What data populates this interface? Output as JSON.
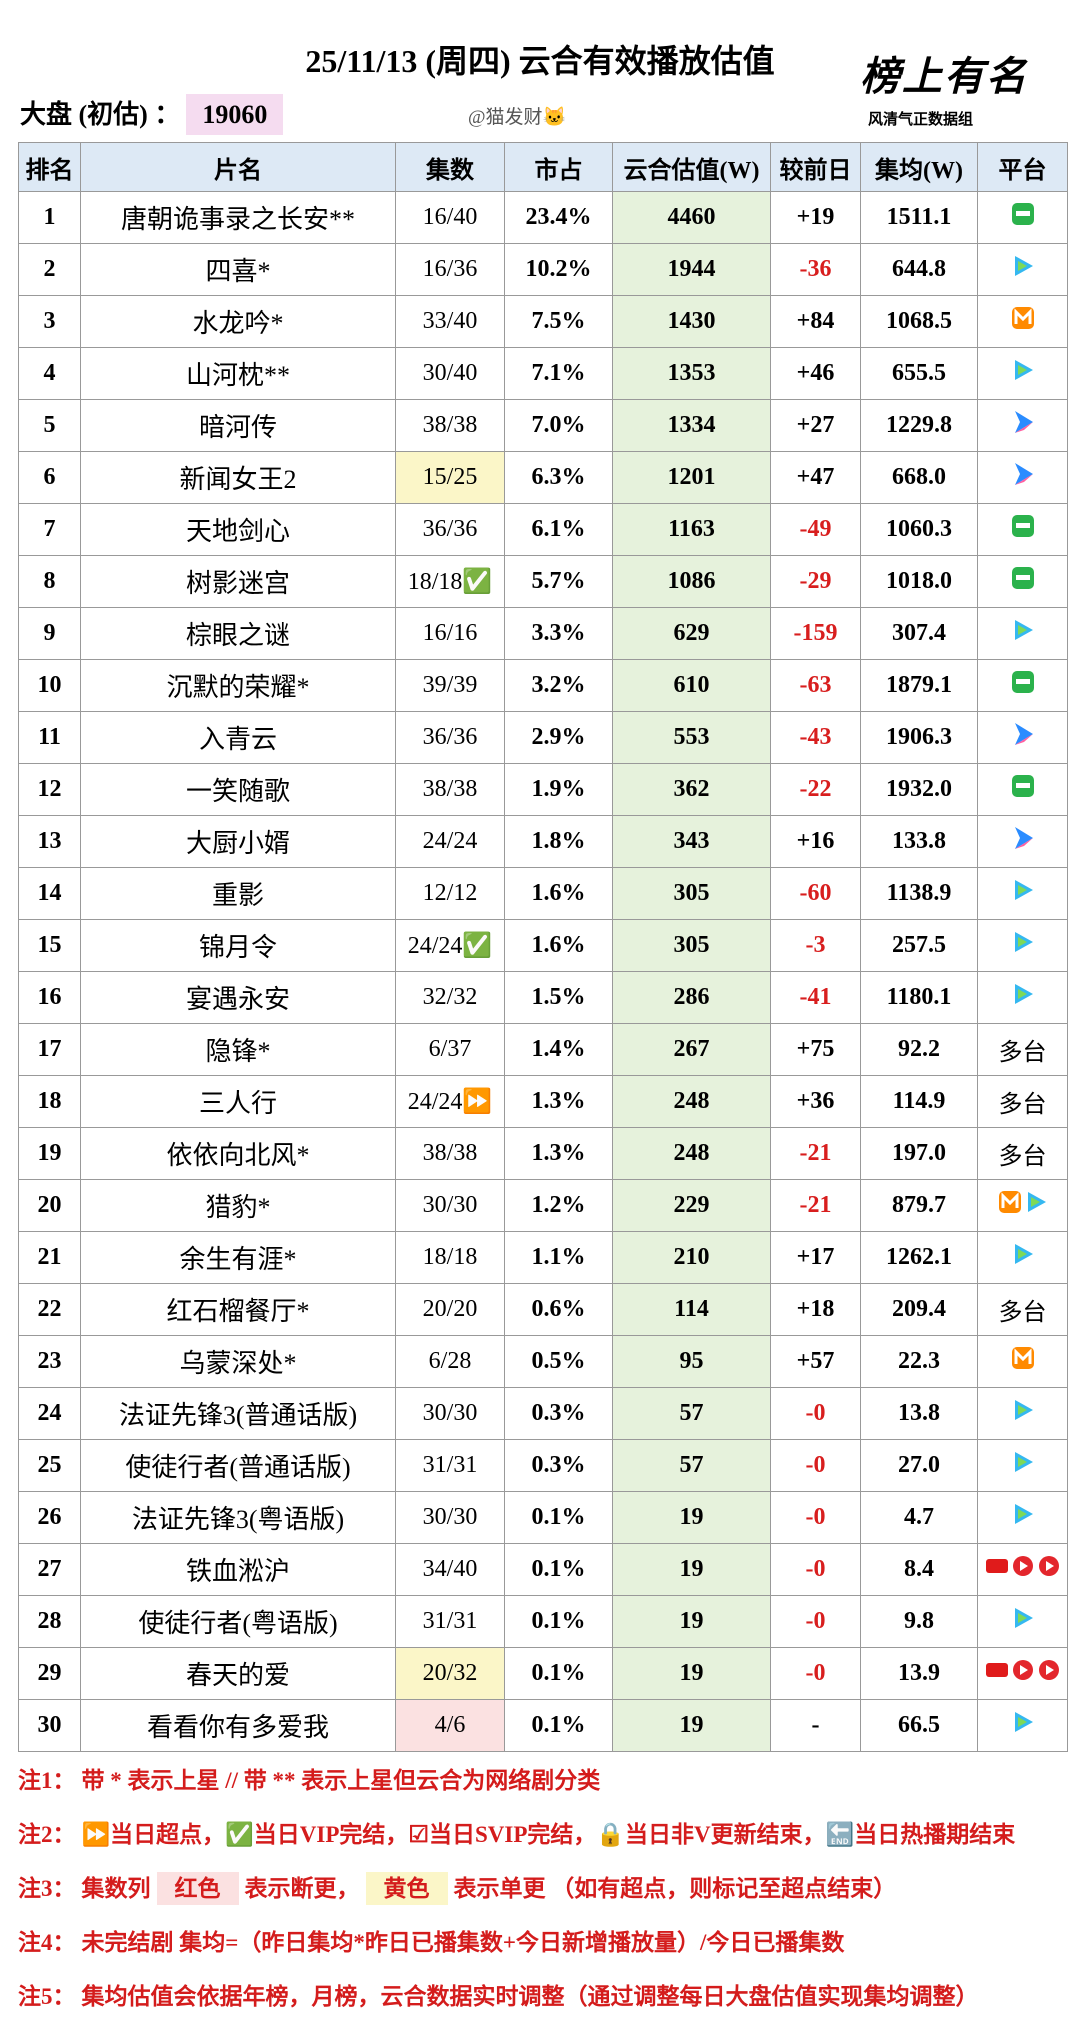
{
  "header": {
    "title": "25/11/13 (周四) 云合有效播放估值",
    "market_label": "大盘 (初估) ：",
    "market_value": "19060",
    "author": "@猫发财🐱",
    "logo": "榜上有名",
    "logo_sub": "风清气正数据组"
  },
  "table": {
    "columns": [
      "排名",
      "片名",
      "集数",
      "市占",
      "云合估值(W)",
      "较前日",
      "集均(W)",
      "平台"
    ],
    "rows": [
      [
        "1",
        "唐朝诡事录之长安**",
        "16/40",
        "23.4%",
        "4460",
        "+19",
        "1511.1",
        null
      ],
      [
        "2",
        "四喜*",
        "16/36",
        "10.2%",
        "1944",
        "-36",
        "644.8",
        null
      ],
      [
        "3",
        "水龙吟*",
        "33/40",
        "7.5%",
        "1430",
        "+84",
        "1068.5",
        null
      ],
      [
        "4",
        "山河枕**",
        "30/40",
        "7.1%",
        "1353",
        "+46",
        "655.5",
        null
      ],
      [
        "5",
        "暗河传",
        "38/38",
        "7.0%",
        "1334",
        "+27",
        "1229.8",
        null
      ],
      [
        "6",
        "新闻女王2",
        "15/25",
        "6.3%",
        "1201",
        "+47",
        "668.0",
        null
      ],
      [
        "7",
        "天地剑心",
        "36/36",
        "6.1%",
        "1163",
        "-49",
        "1060.3",
        null
      ],
      [
        "8",
        "树影迷宫",
        "18/18✅",
        "5.7%",
        "1086",
        "-29",
        "1018.0",
        null
      ],
      [
        "9",
        "棕眼之谜",
        "16/16",
        "3.3%",
        "629",
        "-159",
        "307.4",
        null
      ],
      [
        "10",
        "沉默的荣耀*",
        "39/39",
        "3.2%",
        "610",
        "-63",
        "1879.1",
        null
      ],
      [
        "11",
        "入青云",
        "36/36",
        "2.9%",
        "553",
        "-43",
        "1906.3",
        null
      ],
      [
        "12",
        "一笑随歌",
        "38/38",
        "1.9%",
        "362",
        "-22",
        "1932.0",
        null
      ],
      [
        "13",
        "大厨小婿",
        "24/24",
        "1.8%",
        "343",
        "+16",
        "133.8",
        null
      ],
      [
        "14",
        "重影",
        "12/12",
        "1.6%",
        "305",
        "-60",
        "1138.9",
        null
      ],
      [
        "15",
        "锦月令",
        "24/24✅",
        "1.6%",
        "305",
        "-3",
        "257.5",
        null
      ],
      [
        "16",
        "宴遇永安",
        "32/32",
        "1.5%",
        "286",
        "-41",
        "1180.1",
        null
      ],
      [
        "17",
        "隐锋*",
        "6/37",
        "1.4%",
        "267",
        "+75",
        "92.2",
        "多台"
      ],
      [
        "18",
        "三人行",
        "24/24⏩",
        "1.3%",
        "248",
        "+36",
        "114.9",
        "多台"
      ],
      [
        "19",
        "依依向北风*",
        "38/38",
        "1.3%",
        "248",
        "-21",
        "197.0",
        "多台"
      ],
      [
        "20",
        "猎豹*",
        "30/30",
        "1.2%",
        "229",
        "-21",
        "879.7",
        null
      ],
      [
        "21",
        "余生有涯*",
        "18/18",
        "1.1%",
        "210",
        "+17",
        "1262.1",
        null
      ],
      [
        "22",
        "红石榴餐厅*",
        "20/20",
        "0.6%",
        "114",
        "+18",
        "209.4",
        "多台"
      ],
      [
        "23",
        "乌蒙深处*",
        "6/28",
        "0.5%",
        "95",
        "+57",
        "22.3",
        null
      ],
      [
        "24",
        "法证先锋3(普通话版)",
        "30/30",
        "0.3%",
        "57",
        "-0",
        "13.8",
        null
      ],
      [
        "25",
        "使徒行者(普通话版)",
        "31/31",
        "0.3%",
        "57",
        "-0",
        "27.0",
        null
      ],
      [
        "26",
        "法证先锋3(粤语版)",
        "30/30",
        "0.1%",
        "19",
        "-0",
        "4.7",
        null
      ],
      [
        "27",
        "铁血淞沪",
        "34/40",
        "0.1%",
        "19",
        "-0",
        "8.4",
        null
      ],
      [
        "28",
        "使徒行者(粤语版)",
        "31/31",
        "0.1%",
        "19",
        "-0",
        "9.8",
        null
      ],
      [
        "29",
        "春天的爱",
        "20/32",
        "0.1%",
        "19",
        "-0",
        "13.9",
        null
      ],
      [
        "30",
        "看看你有多爱我",
        "4/6",
        "0.1%",
        "19",
        "-",
        "66.5",
        null
      ]
    ]
  },
  "notes": [
    {
      "label": "注1：",
      "parts": [
        "带 * 表示上星 // 带 ** 表示上星但云合为网络剧分类"
      ]
    },
    {
      "label": "注2：",
      "parts": [
        "⏩当日超点，✅当日VIP完结，☑当日SVIP完结，🔒当日非V更新结束，🔚当日热播期结束"
      ]
    },
    {
      "label": "注3：",
      "parts": [
        "集数列",
        "红色",
        "表示断更，",
        "黄色",
        "表示单更 （如有超点，则标记至超点结束）"
      ]
    },
    {
      "label": "注4：",
      "parts": [
        "未完结剧 集均=（昨日集均*昨日已播集数+今日新增播放量）/今日已播集数"
      ]
    },
    {
      "label": "注5：",
      "parts": [
        "集均估值会依据年榜，月榜，云合数据实时调整（通过调整每日大盘估值实现集均调整）"
      ]
    }
  ]
}
